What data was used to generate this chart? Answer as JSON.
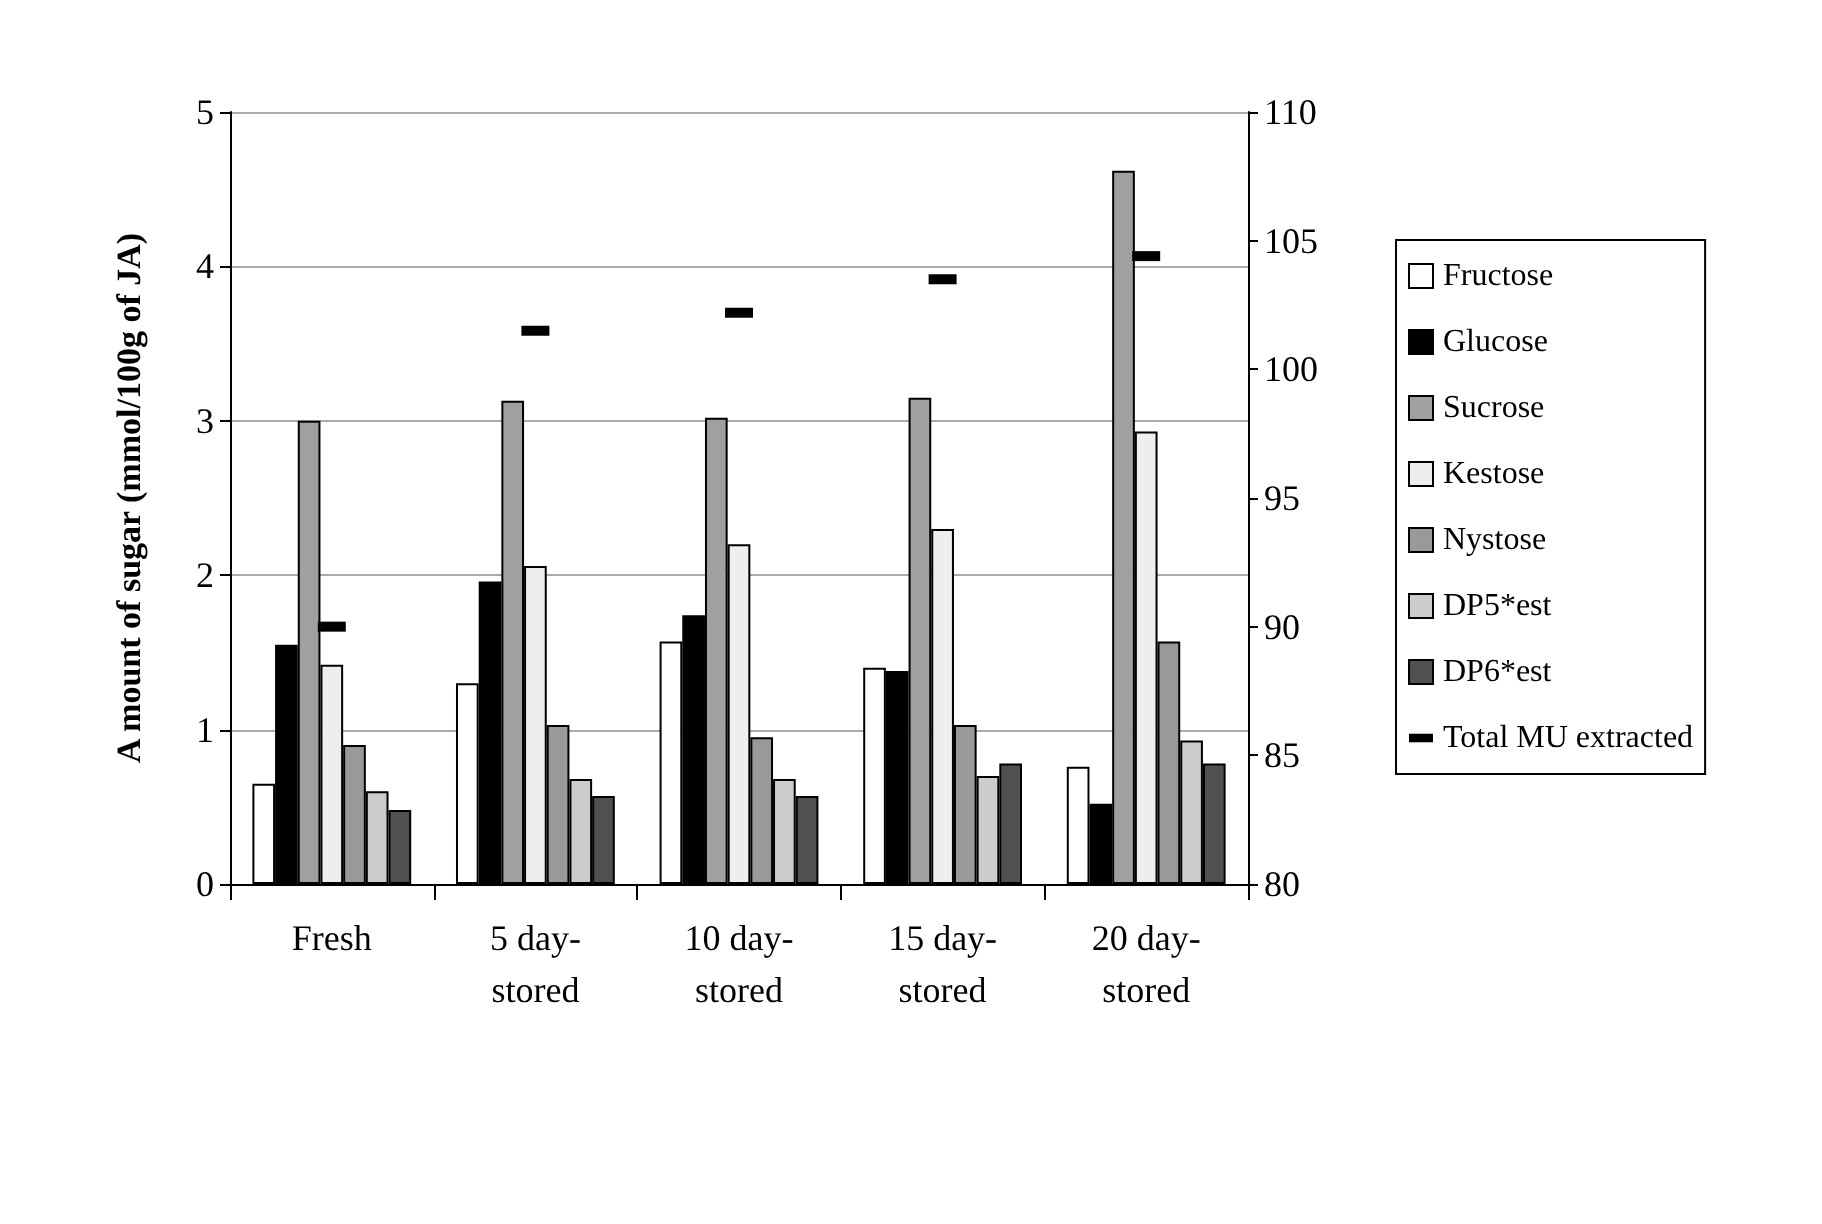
{
  "chart_data": {
    "type": "bar",
    "ylabel": "A mount of sugar (mmol/100g of JA)",
    "categories": [
      "Fresh",
      "5 day-stored",
      "10 day-stored",
      "15 day-stored",
      "20 day-stored"
    ],
    "series": [
      {
        "name": "Fructose",
        "color": "#ffffff",
        "values": [
          0.65,
          1.3,
          1.57,
          1.4,
          0.76
        ]
      },
      {
        "name": "Glucose",
        "color": "#000000",
        "values": [
          1.55,
          1.96,
          1.74,
          1.38,
          0.52
        ]
      },
      {
        "name": "Sucrose",
        "color": "#a0a0a0",
        "values": [
          3.0,
          3.13,
          3.02,
          3.15,
          4.62
        ]
      },
      {
        "name": "Kestose",
        "color": "#eeeeee",
        "values": [
          1.42,
          2.06,
          2.2,
          2.3,
          2.93
        ]
      },
      {
        "name": "Nystose",
        "color": "#999999",
        "values": [
          0.9,
          1.03,
          0.95,
          1.03,
          1.57
        ]
      },
      {
        "name": "DP5*est",
        "color": "#cccccc",
        "values": [
          0.6,
          0.68,
          0.68,
          0.7,
          0.93
        ]
      },
      {
        "name": "DP6*est",
        "color": "#505050",
        "values": [
          0.48,
          0.57,
          0.57,
          0.78,
          0.78
        ]
      },
      {
        "name": "Total MU extracted",
        "type": "scatter",
        "axis": "y2",
        "color": "#000000",
        "values": [
          90.0,
          101.5,
          102.2,
          103.5,
          104.4
        ]
      }
    ],
    "ylim": [
      0,
      5
    ],
    "yticks": [
      0,
      1,
      2,
      3,
      4,
      5
    ],
    "y2lim": [
      80,
      110
    ],
    "y2ticks": [
      80,
      85,
      90,
      95,
      100,
      105,
      110
    ],
    "grid": "y",
    "legend": "right"
  }
}
